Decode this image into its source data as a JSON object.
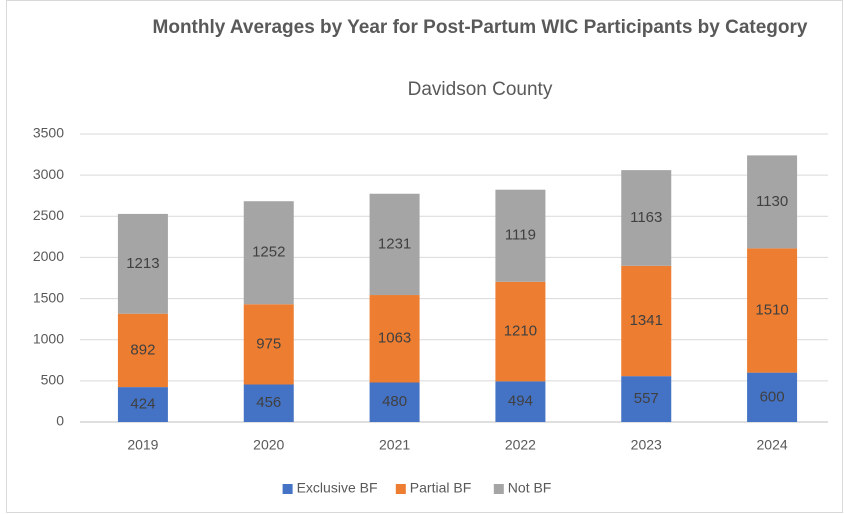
{
  "chart_data": {
    "type": "stacked_bar",
    "title": "Monthly Averages by Year for Post-Partum WIC Participants by Category",
    "subtitle": "Davidson County",
    "categories": [
      "2019",
      "2020",
      "2021",
      "2022",
      "2023",
      "2024"
    ],
    "series": [
      {
        "name": "Exclusive BF",
        "color": "#4472c4",
        "values": [
          424,
          456,
          480,
          494,
          557,
          600
        ]
      },
      {
        "name": "Partial BF",
        "color": "#ed7d31",
        "values": [
          892,
          975,
          1063,
          1210,
          1341,
          1510
        ]
      },
      {
        "name": "Not BF",
        "color": "#a5a5a5",
        "values": [
          1213,
          1252,
          1231,
          1119,
          1163,
          1130
        ]
      }
    ],
    "ylim": [
      0,
      3500
    ],
    "yticks": [
      0,
      500,
      1000,
      1500,
      2000,
      2500,
      3000,
      3500
    ],
    "grid": true,
    "legend": "bottom"
  }
}
